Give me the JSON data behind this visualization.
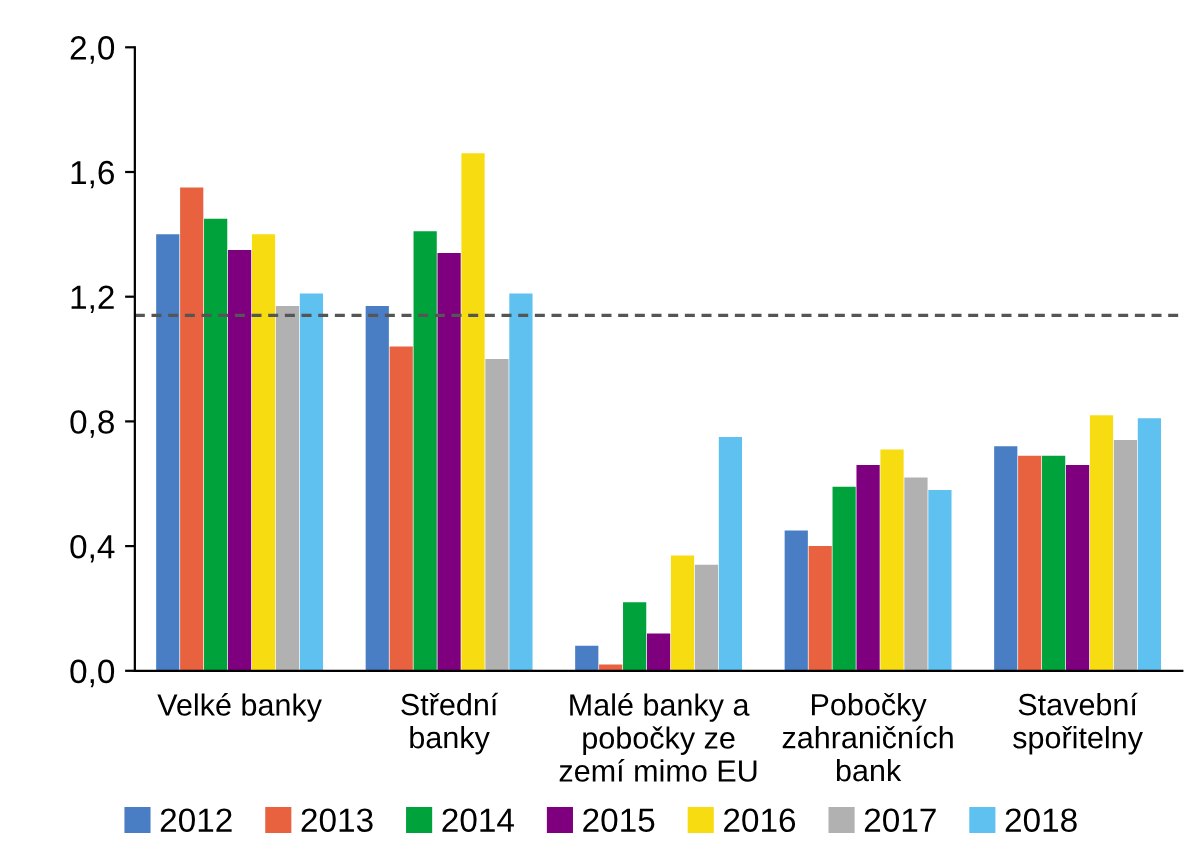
{
  "chart_data": {
    "type": "bar",
    "categories": [
      "Velké banky",
      "Střední\nbanky",
      "Malé banky a\npobočky ze\nzemí mimo EU",
      "Pobočky\nzahraničních\nbank",
      "Stavební\nspořitelny"
    ],
    "series": [
      {
        "name": "2012",
        "color": "#4a7ec4",
        "values": [
          1.4,
          1.17,
          0.08,
          0.45,
          0.72
        ]
      },
      {
        "name": "2013",
        "color": "#e86240",
        "values": [
          1.55,
          1.04,
          0.02,
          0.4,
          0.69
        ]
      },
      {
        "name": "2014",
        "color": "#00a23c",
        "values": [
          1.45,
          1.41,
          0.22,
          0.59,
          0.69
        ]
      },
      {
        "name": "2015",
        "color": "#7f007f",
        "values": [
          1.35,
          1.34,
          0.12,
          0.66,
          0.66
        ]
      },
      {
        "name": "2016",
        "color": "#f8dc12",
        "values": [
          1.4,
          1.66,
          0.37,
          0.71,
          0.82
        ]
      },
      {
        "name": "2017",
        "color": "#b1b1b1",
        "values": [
          1.17,
          1.0,
          0.34,
          0.62,
          0.74
        ]
      },
      {
        "name": "2018",
        "color": "#5fc1f0",
        "values": [
          1.21,
          1.21,
          0.75,
          0.58,
          0.81
        ]
      }
    ],
    "ylim": [
      0,
      2.0
    ],
    "yticks": [
      {
        "value": 0,
        "label": "0,0"
      },
      {
        "value": 0.4,
        "label": "0,4"
      },
      {
        "value": 0.8,
        "label": "0,8"
      },
      {
        "value": 1.2,
        "label": "1,2"
      },
      {
        "value": 1.6,
        "label": "1,6"
      },
      {
        "value": 2.0,
        "label": "2,0"
      }
    ],
    "ref_lines": [
      {
        "axis": "y",
        "value": 1.14,
        "color": "#555555",
        "line_style": "dashed"
      }
    ],
    "grid": false,
    "legend": "bottom"
  }
}
